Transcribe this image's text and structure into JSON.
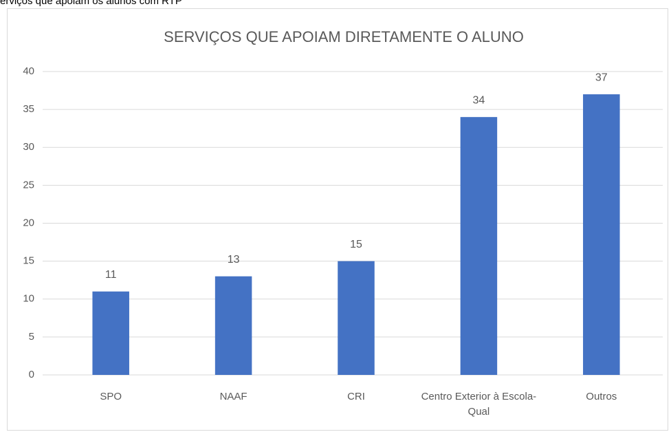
{
  "caption": "erviços que apoiam os alunos com RTP",
  "chart_data": {
    "type": "bar",
    "title": "SERVIÇOS QUE APOIAM DIRETAMENTE O ALUNO",
    "categories": [
      "SPO",
      "NAAF",
      "CRI",
      "Centro Exterior à Escola-Qual",
      "Outros"
    ],
    "values": [
      11,
      13,
      15,
      34,
      37
    ],
    "color": "#4472c4",
    "ylim": [
      0,
      40
    ],
    "yticks": [
      0,
      5,
      10,
      15,
      20,
      25,
      30,
      35,
      40
    ],
    "grid": true
  }
}
